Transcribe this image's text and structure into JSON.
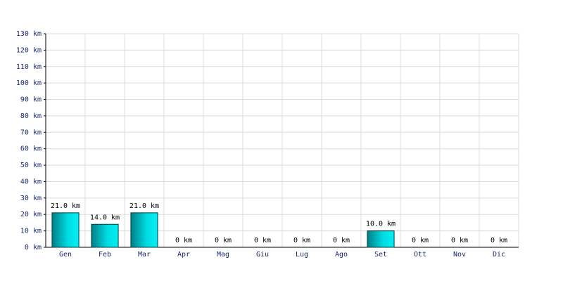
{
  "chart_data": {
    "type": "bar",
    "categories": [
      "Gen",
      "Feb",
      "Mar",
      "Apr",
      "Mag",
      "Giu",
      "Lug",
      "Ago",
      "Set",
      "Ott",
      "Nov",
      "Dic"
    ],
    "values": [
      21,
      14,
      21,
      0,
      0,
      0,
      0,
      0,
      10,
      0,
      0,
      0
    ],
    "value_labels": [
      "21.0 km",
      "14.0 km",
      "21.0 km",
      "0 km",
      "0 km",
      "0 km",
      "0 km",
      "0 km",
      "10.0 km",
      "0 km",
      "0 km",
      "0 km"
    ],
    "color": "#00c8d0",
    "ylim": [
      0,
      130
    ],
    "yticks": [
      {
        "value": 0,
        "label": "0 km"
      },
      {
        "value": 10,
        "label": "10 km"
      },
      {
        "value": 20,
        "label": "20 km"
      },
      {
        "value": 30,
        "label": "30 km"
      },
      {
        "value": 40,
        "label": "40 km"
      },
      {
        "value": 50,
        "label": "50 km"
      },
      {
        "value": 60,
        "label": "60 km"
      },
      {
        "value": 70,
        "label": "70 km"
      },
      {
        "value": 80,
        "label": "80 km"
      },
      {
        "value": 90,
        "label": "90 km"
      },
      {
        "value": 100,
        "label": "100 km"
      },
      {
        "value": 110,
        "label": "110 km"
      },
      {
        "value": 120,
        "label": "120 km"
      },
      {
        "value": 130,
        "label": "130 km"
      }
    ],
    "grid": true
  }
}
